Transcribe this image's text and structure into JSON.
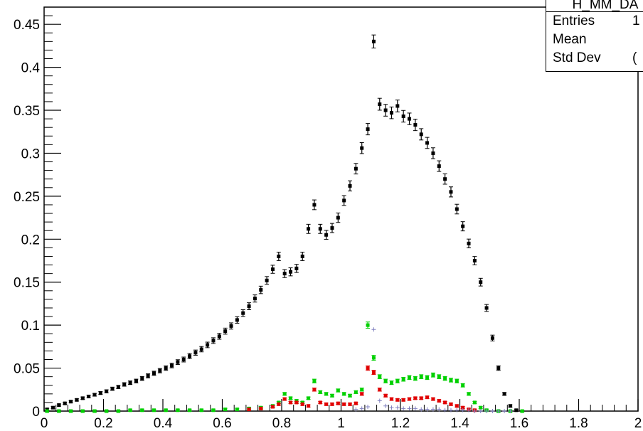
{
  "chart_data": {
    "type": "scatter",
    "title": "",
    "xlabel": "",
    "ylabel": "",
    "xlim": [
      0,
      2
    ],
    "ylim": [
      0,
      0.47
    ],
    "x_ticks": [
      "0",
      "0.2",
      "0.4",
      "0.6",
      "0.8",
      "1",
      "1.2",
      "1.4",
      "1.6",
      "1.8",
      "2"
    ],
    "y_ticks": [
      "0",
      "0.05",
      "0.1",
      "0.15",
      "0.2",
      "0.25",
      "0.3",
      "0.35",
      "0.4",
      "0.45"
    ],
    "grid": false,
    "series": [
      {
        "color": "#000000",
        "marker": "square",
        "x": [
          0.01,
          0.03,
          0.05,
          0.07,
          0.09,
          0.11,
          0.13,
          0.15,
          0.17,
          0.19,
          0.21,
          0.23,
          0.25,
          0.27,
          0.29,
          0.31,
          0.33,
          0.35,
          0.37,
          0.39,
          0.41,
          0.43,
          0.45,
          0.47,
          0.49,
          0.51,
          0.53,
          0.55,
          0.57,
          0.59,
          0.61,
          0.63,
          0.65,
          0.67,
          0.69,
          0.71,
          0.73,
          0.75,
          0.77,
          0.79,
          0.81,
          0.83,
          0.85,
          0.87,
          0.89,
          0.91,
          0.93,
          0.95,
          0.97,
          0.99,
          1.01,
          1.03,
          1.05,
          1.07,
          1.09,
          1.11,
          1.13,
          1.15,
          1.17,
          1.19,
          1.21,
          1.23,
          1.25,
          1.27,
          1.29,
          1.31,
          1.33,
          1.35,
          1.37,
          1.39,
          1.41,
          1.43,
          1.45,
          1.47,
          1.49,
          1.51,
          1.53,
          1.55,
          1.57,
          1.59
        ],
        "y": [
          0.002,
          0.004,
          0.007,
          0.009,
          0.011,
          0.013,
          0.015,
          0.017,
          0.019,
          0.021,
          0.023,
          0.026,
          0.028,
          0.031,
          0.033,
          0.035,
          0.038,
          0.041,
          0.044,
          0.047,
          0.05,
          0.053,
          0.057,
          0.06,
          0.064,
          0.068,
          0.072,
          0.077,
          0.082,
          0.087,
          0.093,
          0.099,
          0.106,
          0.114,
          0.122,
          0.131,
          0.141,
          0.152,
          0.165,
          0.18,
          0.16,
          0.162,
          0.166,
          0.18,
          0.212,
          0.24,
          0.212,
          0.205,
          0.213,
          0.225,
          0.245,
          0.262,
          0.282,
          0.306,
          0.328,
          0.43,
          0.357,
          0.35,
          0.347,
          0.355,
          0.343,
          0.34,
          0.333,
          0.322,
          0.312,
          0.3,
          0.285,
          0.27,
          0.255,
          0.235,
          0.215,
          0.195,
          0.175,
          0.15,
          0.12,
          0.085,
          0.05,
          0.02,
          0.006,
          0.001
        ]
      },
      {
        "color": "#00d000",
        "marker": "square",
        "x": [
          0.01,
          0.05,
          0.09,
          0.13,
          0.17,
          0.21,
          0.25,
          0.29,
          0.33,
          0.37,
          0.41,
          0.45,
          0.49,
          0.53,
          0.57,
          0.61,
          0.65,
          0.69,
          0.73,
          0.77,
          0.79,
          0.81,
          0.83,
          0.85,
          0.87,
          0.89,
          0.91,
          0.93,
          0.95,
          0.97,
          0.99,
          1.01,
          1.03,
          1.05,
          1.07,
          1.09,
          1.11,
          1.13,
          1.15,
          1.17,
          1.19,
          1.21,
          1.23,
          1.25,
          1.27,
          1.29,
          1.31,
          1.33,
          1.35,
          1.37,
          1.39,
          1.41,
          1.43,
          1.45,
          1.47,
          1.49,
          1.53,
          1.57,
          1.61
        ],
        "y": [
          0.0,
          0.0,
          0.0,
          0.0,
          0.0,
          0.0,
          0.0,
          0.001,
          0.001,
          0.001,
          0.001,
          0.001,
          0.001,
          0.001,
          0.001,
          0.002,
          0.002,
          0.003,
          0.004,
          0.006,
          0.01,
          0.02,
          0.015,
          0.012,
          0.01,
          0.015,
          0.035,
          0.022,
          0.02,
          0.018,
          0.024,
          0.02,
          0.018,
          0.022,
          0.025,
          0.1,
          0.062,
          0.04,
          0.035,
          0.033,
          0.035,
          0.037,
          0.039,
          0.038,
          0.04,
          0.039,
          0.042,
          0.04,
          0.038,
          0.036,
          0.035,
          0.03,
          0.02,
          0.01,
          0.004,
          0.001,
          0.0,
          0.0,
          0.0
        ]
      },
      {
        "color": "#e00000",
        "marker": "square",
        "x": [
          0.69,
          0.73,
          0.77,
          0.79,
          0.81,
          0.83,
          0.85,
          0.87,
          0.89,
          0.91,
          0.93,
          0.95,
          0.97,
          0.99,
          1.01,
          1.03,
          1.05,
          1.07,
          1.09,
          1.11,
          1.13,
          1.15,
          1.17,
          1.19,
          1.21,
          1.23,
          1.25,
          1.27,
          1.29,
          1.31,
          1.33,
          1.35,
          1.37,
          1.39,
          1.41,
          1.43,
          1.45
        ],
        "y": [
          0.002,
          0.003,
          0.005,
          0.008,
          0.014,
          0.01,
          0.01,
          0.008,
          0.006,
          0.025,
          0.01,
          0.008,
          0.008,
          0.009,
          0.008,
          0.008,
          0.009,
          0.02,
          0.05,
          0.045,
          0.025,
          0.018,
          0.014,
          0.013,
          0.013,
          0.014,
          0.015,
          0.015,
          0.016,
          0.014,
          0.012,
          0.01,
          0.008,
          0.006,
          0.004,
          0.002,
          0.001
        ]
      },
      {
        "color": "#8080c0",
        "marker": "cross",
        "x": [
          1.05,
          1.07,
          1.09,
          1.11,
          1.13,
          1.15,
          1.17,
          1.19,
          1.21,
          1.23,
          1.25,
          1.27,
          1.29,
          1.31,
          1.33,
          1.35,
          1.37,
          1.39,
          1.41,
          1.43,
          1.45,
          1.47,
          1.49,
          1.51,
          1.53,
          1.55,
          1.57
        ],
        "y": [
          0.002,
          0.003,
          0.005,
          0.095,
          0.012,
          0.006,
          0.004,
          0.004,
          0.003,
          0.003,
          0.003,
          0.002,
          0.002,
          0.002,
          0.002,
          0.001,
          0.001,
          0.001,
          0.001,
          0.001,
          0.0,
          0.0,
          0.0,
          0.0,
          0.0,
          0.0,
          0.0
        ]
      }
    ],
    "legend": {
      "placement": "top-right",
      "title": "H_MM_DA",
      "entries": [
        {
          "label": "Entries",
          "value": "1"
        },
        {
          "label": "Mean",
          "value": ""
        },
        {
          "label": "Std Dev",
          "value": "("
        }
      ]
    }
  }
}
